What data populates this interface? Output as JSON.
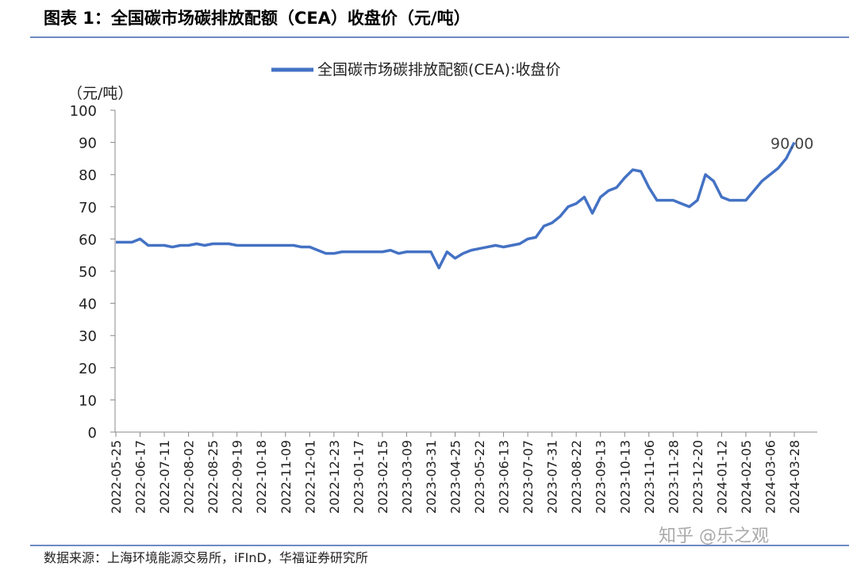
{
  "chart_data": {
    "type": "line",
    "title": "图表 1：全国碳市场碳排放配额（CEA）收盘价（元/吨）",
    "y_label": "（元/吨）",
    "source": "数据来源：上海环境能源交易所，iFInD，华福证券研究所",
    "watermark": "知乎 @乐之观",
    "categories": [
      "2022-05-25",
      null,
      null,
      "2022-06-17",
      null,
      null,
      "2022-07-11",
      null,
      null,
      "2022-08-02",
      null,
      null,
      "2022-08-25",
      null,
      null,
      "2022-09-19",
      null,
      null,
      "2022-10-18",
      null,
      null,
      "2022-11-09",
      null,
      null,
      "2022-12-01",
      null,
      null,
      "2022-12-23",
      null,
      null,
      "2023-01-17",
      null,
      null,
      "2023-02-15",
      null,
      null,
      "2023-03-09",
      null,
      null,
      "2023-03-31",
      null,
      null,
      "2023-04-25",
      null,
      null,
      "2023-05-22",
      null,
      null,
      "2023-06-13",
      null,
      null,
      "2023-07-07",
      null,
      null,
      "2023-07-31",
      null,
      null,
      "2023-08-22",
      null,
      null,
      "2023-09-13",
      null,
      null,
      "2023-10-13",
      null,
      null,
      "2023-11-06",
      null,
      null,
      "2023-11-28",
      null,
      null,
      "2023-12-20",
      null,
      null,
      "2024-01-12",
      null,
      null,
      "2024-02-05",
      null,
      null,
      "2024-03-06",
      null,
      null,
      "2024-03-28"
    ],
    "series": [
      {
        "name": "全国碳市场碳排放配额(CEA):收盘价",
        "color": "#4472c4",
        "values": [
          59,
          59,
          59,
          60,
          58,
          58,
          58,
          57.5,
          58,
          58,
          58.5,
          58,
          58.5,
          58.5,
          58.5,
          58,
          58,
          58,
          58,
          58,
          58,
          58,
          58,
          57.5,
          57.5,
          56.5,
          55.5,
          55.5,
          56,
          56,
          56,
          56,
          56,
          56,
          56.5,
          55.5,
          56,
          56,
          56,
          56,
          51,
          56,
          54,
          55.5,
          56.5,
          57,
          57.5,
          58,
          57.5,
          58,
          58.5,
          60,
          60.5,
          64,
          65,
          67,
          70,
          71,
          73,
          68,
          73,
          75,
          76,
          79,
          81.5,
          81,
          76,
          72,
          72,
          72,
          71,
          70,
          72,
          80,
          78,
          73,
          72,
          72,
          72,
          75,
          78,
          80,
          82,
          85,
          90
        ]
      }
    ],
    "annotation": {
      "value": 90,
      "label": "90.00"
    },
    "ylim": [
      0,
      100
    ],
    "yticks": [
      0,
      10,
      20,
      30,
      40,
      50,
      60,
      70,
      80,
      90,
      100
    ]
  }
}
